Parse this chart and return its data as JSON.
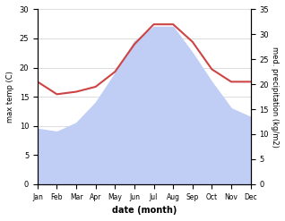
{
  "months": [
    "Jan",
    "Feb",
    "Mar",
    "Apr",
    "May",
    "Jun",
    "Jul",
    "Aug",
    "Sep",
    "Oct",
    "Nov",
    "Dec"
  ],
  "max_temp_fill": [
    9.5,
    9.0,
    10.5,
    14.0,
    19.0,
    24.5,
    27.0,
    27.0,
    22.5,
    17.5,
    13.0,
    11.5
  ],
  "precipitation_line": [
    20.5,
    18.0,
    18.5,
    19.5,
    22.5,
    28.0,
    32.0,
    32.0,
    28.5,
    23.0,
    20.5,
    20.5
  ],
  "temp_color": "#cc4444",
  "precip_fill_color": "#c0cef5",
  "temp_ylim": [
    0,
    30
  ],
  "precip_ylim": [
    0,
    35
  ],
  "xlabel": "date (month)",
  "ylabel_left": "max temp (C)",
  "ylabel_right": "med. precipitation (kg/m2)",
  "bg_color": "#ffffff",
  "grid_color": "#d0d0d0"
}
